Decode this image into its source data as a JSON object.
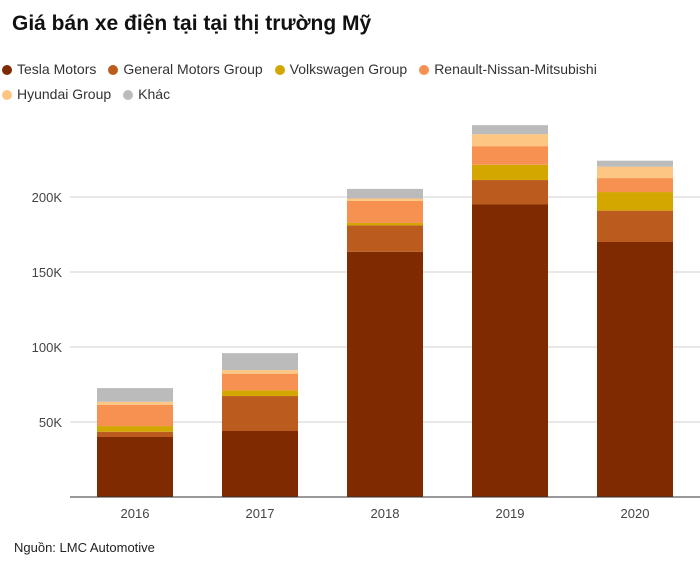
{
  "title": "Giá bán xe điện tại tại thị trường Mỹ",
  "source": "Nguồn: LMC Automotive",
  "chart_data": {
    "type": "bar",
    "stacked": true,
    "categories": [
      "2016",
      "2017",
      "2018",
      "2019",
      "2020"
    ],
    "series": [
      {
        "name": "Tesla Motors",
        "color": "#7f2a00",
        "values": [
          40,
          44,
          163.5,
          195,
          170
        ]
      },
      {
        "name": "General Motors Group",
        "color": "#bb5c1e",
        "values": [
          3.5,
          23.3,
          17.6,
          16.3,
          20.9
        ]
      },
      {
        "name": "Volkswagen Group",
        "color": "#d4a600",
        "values": [
          3.8,
          3.8,
          1.6,
          10.2,
          12.4
        ]
      },
      {
        "name": "Renault-Nissan-Mitsubishi",
        "color": "#f79152",
        "values": [
          14.2,
          11.1,
          14.7,
          12.4,
          9.3
        ]
      },
      {
        "name": "Hyundai Group",
        "color": "#fdc683",
        "values": [
          2,
          2.4,
          1.6,
          8,
          7.6
        ]
      },
      {
        "name": "Khác",
        "color": "#bbbbbb",
        "values": [
          9.1,
          11.3,
          6.4,
          6,
          4
        ]
      }
    ],
    "yticks": [
      {
        "v": 50,
        "label": "50K"
      },
      {
        "v": 100,
        "label": "100K"
      },
      {
        "v": 150,
        "label": "150K"
      },
      {
        "v": 200,
        "label": "200K"
      }
    ],
    "ylim": [
      0,
      250
    ],
    "grid": true,
    "legend": "top"
  }
}
